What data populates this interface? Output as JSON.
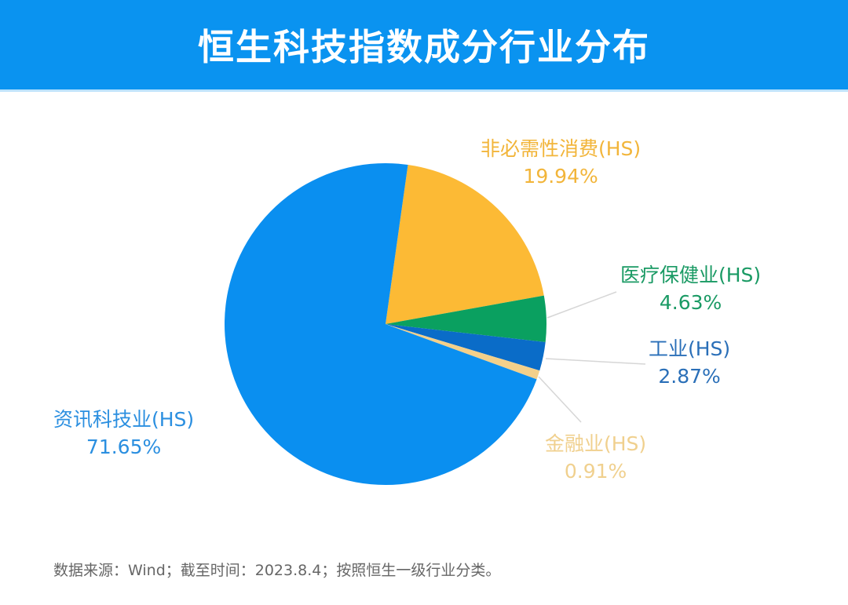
{
  "header": {
    "title": "恒生科技指数成分行业分布"
  },
  "colors": {
    "header_bg": "#0a93f0",
    "it": "#0a8ff0",
    "consumer": "#fcba35",
    "healthcare": "#0aa060",
    "industrial": "#0a6cc8",
    "financial": "#f3d08a"
  },
  "labels": {
    "consumer": {
      "name": "非必需性消费(HS)",
      "pct": "19.94%"
    },
    "healthcare": {
      "name": "医疗保健业(HS)",
      "pct": "4.63%"
    },
    "industrial": {
      "name": "工业(HS)",
      "pct": "2.87%"
    },
    "financial": {
      "name": "金融业(HS)",
      "pct": "0.91%"
    },
    "it": {
      "name": "资讯科技业(HS)",
      "pct": "71.65%"
    }
  },
  "footer": {
    "note": "数据来源：Wind；截至时间：2023.8.4；按照恒生一级行业分类。"
  },
  "chart_data": {
    "type": "pie",
    "title": "恒生科技指数成分行业分布",
    "categories": [
      "非必需性消费(HS)",
      "医疗保健业(HS)",
      "工业(HS)",
      "金融业(HS)",
      "资讯科技业(HS)"
    ],
    "values": [
      19.94,
      4.63,
      2.87,
      0.91,
      71.65
    ],
    "unit": "%",
    "colors": [
      "#fcba35",
      "#0aa060",
      "#0a6cc8",
      "#f3d08a",
      "#0a8ff0"
    ],
    "start_angle_deg_clockwise_from_top": 8,
    "legend": "none (outside data labels with leader lines)",
    "source_note": "数据来源：Wind；截至时间：2023.8.4；按照恒生一级行业分类。"
  }
}
